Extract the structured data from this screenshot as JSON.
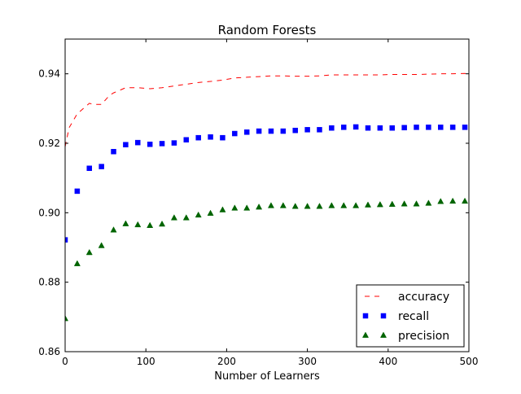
{
  "chart_data": {
    "type": "scatter",
    "title": "Random Forests",
    "xlabel": "Number of Learners",
    "ylabel": "",
    "xlim": [
      0,
      500
    ],
    "ylim": [
      0.86,
      0.95
    ],
    "xticks": [
      0,
      100,
      200,
      300,
      400,
      500
    ],
    "yticks": [
      0.86,
      0.88,
      0.9,
      0.92,
      0.94
    ],
    "ytick_labels": [
      "0.86",
      "0.88",
      "0.90",
      "0.92",
      "0.94"
    ],
    "grid": false,
    "legend_position": "lower-right",
    "series": [
      {
        "name": "accuracy",
        "style": "dashed-line",
        "color": "#ff0000",
        "x": [
          0,
          5,
          10,
          15,
          20,
          25,
          30,
          35,
          40,
          45,
          50,
          55,
          60,
          65,
          70,
          75,
          80,
          90,
          100,
          105,
          110,
          120,
          135,
          150,
          165,
          180,
          195,
          210,
          225,
          240,
          255,
          270,
          285,
          300,
          315,
          330,
          345,
          360,
          375,
          390,
          405,
          420,
          435,
          450,
          465,
          480,
          495,
          500
        ],
        "values": [
          0.919,
          0.9245,
          0.9265,
          0.9285,
          0.9295,
          0.9305,
          0.9315,
          0.9312,
          0.9312,
          0.9312,
          0.9325,
          0.9338,
          0.9345,
          0.935,
          0.9355,
          0.936,
          0.936,
          0.936,
          0.9358,
          0.9357,
          0.9358,
          0.936,
          0.9365,
          0.937,
          0.9375,
          0.9378,
          0.9382,
          0.9388,
          0.939,
          0.9392,
          0.9394,
          0.9394,
          0.9393,
          0.9393,
          0.9394,
          0.9397,
          0.9397,
          0.9397,
          0.9397,
          0.9397,
          0.9398,
          0.9398,
          0.9398,
          0.9399,
          0.94,
          0.94,
          0.9401,
          0.94
        ]
      },
      {
        "name": "recall",
        "style": "square-markers",
        "color": "#0000ff",
        "x": [
          0,
          15,
          30,
          45,
          60,
          75,
          90,
          105,
          120,
          135,
          150,
          165,
          180,
          195,
          210,
          225,
          240,
          255,
          270,
          285,
          300,
          315,
          330,
          345,
          360,
          375,
          390,
          405,
          420,
          435,
          450,
          465,
          480,
          495
        ],
        "values": [
          0.8922,
          0.9062,
          0.9128,
          0.9133,
          0.9176,
          0.9196,
          0.9202,
          0.9197,
          0.9199,
          0.9201,
          0.921,
          0.9216,
          0.9218,
          0.9216,
          0.9228,
          0.9232,
          0.9235,
          0.9235,
          0.9235,
          0.9237,
          0.9239,
          0.9239,
          0.9244,
          0.9246,
          0.9247,
          0.9244,
          0.9244,
          0.9244,
          0.9245,
          0.9246,
          0.9246,
          0.9246,
          0.9246,
          0.9246
        ]
      },
      {
        "name": "precision",
        "style": "triangle-markers",
        "color": "#006400",
        "x": [
          0,
          15,
          30,
          45,
          60,
          75,
          90,
          105,
          120,
          135,
          150,
          165,
          180,
          195,
          210,
          225,
          240,
          255,
          270,
          285,
          300,
          315,
          330,
          345,
          360,
          375,
          390,
          405,
          420,
          435,
          450,
          465,
          480,
          495
        ],
        "values": [
          0.8695,
          0.8853,
          0.8885,
          0.8905,
          0.895,
          0.8968,
          0.8965,
          0.8963,
          0.8967,
          0.8985,
          0.8985,
          0.8993,
          0.8998,
          0.9008,
          0.9013,
          0.9013,
          0.9016,
          0.902,
          0.902,
          0.9018,
          0.9018,
          0.9018,
          0.902,
          0.902,
          0.902,
          0.9022,
          0.9023,
          0.9024,
          0.9025,
          0.9025,
          0.9027,
          0.9032,
          0.9033,
          0.9033
        ]
      }
    ]
  }
}
